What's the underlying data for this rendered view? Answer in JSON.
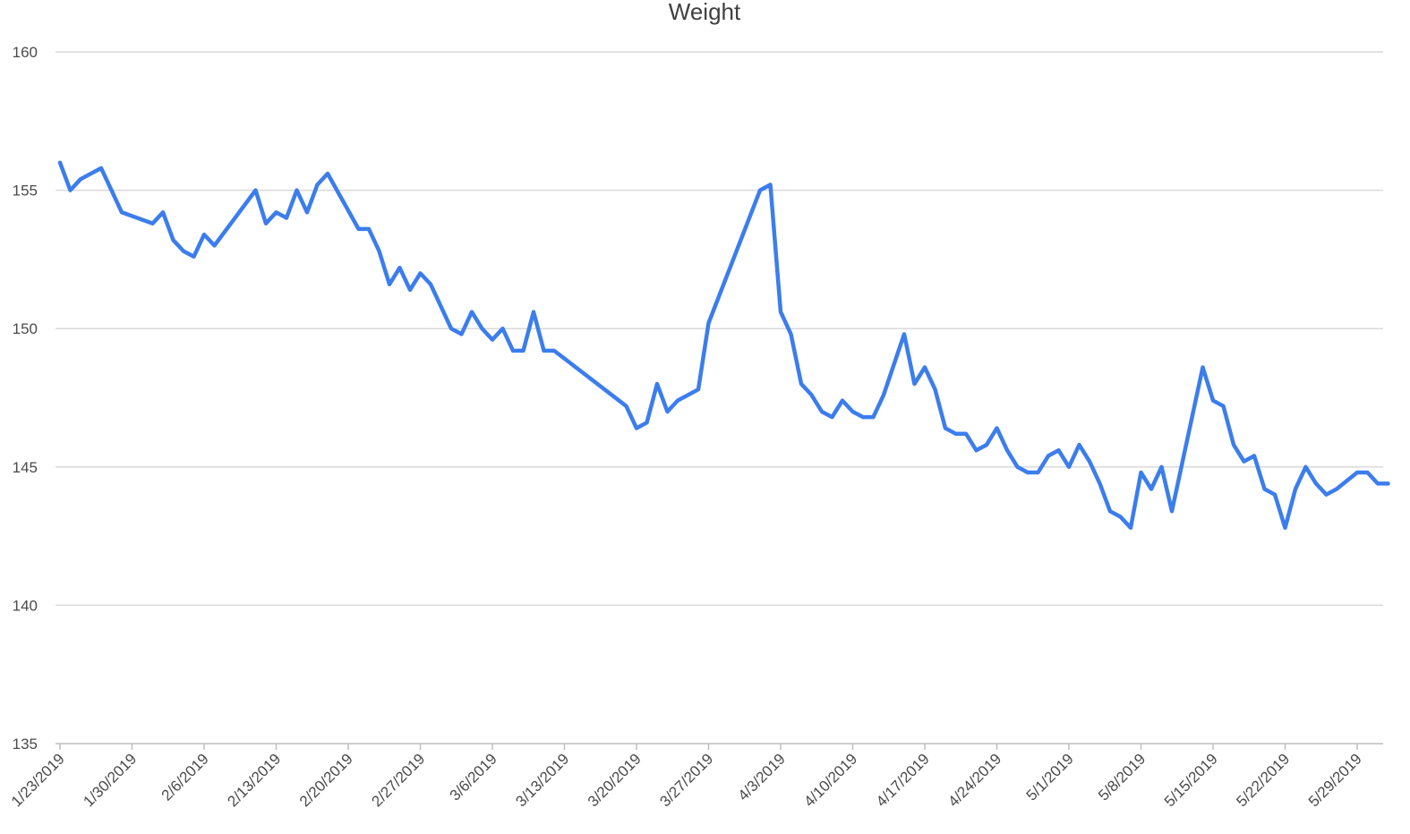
{
  "chart_data": {
    "type": "line",
    "title": "Weight",
    "xlabel": "",
    "ylabel": "",
    "ylim": [
      135,
      160
    ],
    "yticks": [
      135,
      140,
      145,
      150,
      155,
      160
    ],
    "grid": true,
    "legend": "none",
    "xlim": [
      "1/23/2019",
      "6/1/2019"
    ],
    "xticks": [
      "1/23/2019",
      "1/30/2019",
      "2/6/2019",
      "2/13/2019",
      "2/20/2019",
      "2/27/2019",
      "3/6/2019",
      "3/13/2019",
      "3/20/2019",
      "3/27/2019",
      "4/3/2019",
      "4/10/2019",
      "4/17/2019",
      "4/24/2019",
      "5/1/2019",
      "5/8/2019",
      "5/15/2019",
      "5/22/2019",
      "5/29/2019"
    ],
    "line_color": "#3c7ded",
    "series": [
      {
        "x": [
          "1/23/2019",
          "1/24/2019",
          "1/25/2019",
          "1/27/2019",
          "1/28/2019",
          "1/29/2019",
          "2/1/2019",
          "2/2/2019",
          "2/3/2019",
          "2/4/2019",
          "2/5/2019",
          "2/6/2019",
          "2/7/2019",
          "2/8/2019",
          "2/11/2019",
          "2/12/2019",
          "2/13/2019",
          "2/14/2019",
          "2/15/2019",
          "2/16/2019",
          "2/17/2019",
          "2/18/2019",
          "2/21/2019",
          "2/22/2019",
          "2/23/2019",
          "2/24/2019",
          "2/25/2019",
          "2/26/2019",
          "2/27/2019",
          "2/28/2019",
          "3/2/2019",
          "3/3/2019",
          "3/4/2019",
          "3/5/2019",
          "3/6/2019",
          "3/7/2019",
          "3/8/2019",
          "3/9/2019",
          "3/10/2019",
          "3/11/2019",
          "3/12/2019",
          "3/19/2019",
          "3/20/2019",
          "3/21/2019",
          "3/22/2019",
          "3/23/2019",
          "3/24/2019",
          "3/26/2019",
          "3/27/2019",
          "4/1/2019",
          "4/2/2019",
          "4/3/2019",
          "4/4/2019",
          "4/5/2019",
          "4/6/2019",
          "4/7/2019",
          "4/8/2019",
          "4/9/2019",
          "4/10/2019",
          "4/11/2019",
          "4/12/2019",
          "4/13/2019",
          "4/15/2019",
          "4/16/2019",
          "4/17/2019",
          "4/18/2019",
          "4/19/2019",
          "4/20/2019",
          "4/21/2019",
          "4/22/2019",
          "4/23/2019",
          "4/24/2019",
          "4/25/2019",
          "4/26/2019",
          "4/27/2019",
          "4/28/2019",
          "4/29/2019",
          "4/30/2019",
          "5/1/2019",
          "5/2/2019",
          "5/3/2019",
          "5/4/2019",
          "5/5/2019",
          "5/6/2019",
          "5/7/2019",
          "5/8/2019",
          "5/9/2019",
          "5/10/2019",
          "5/11/2019",
          "5/14/2019",
          "5/15/2019",
          "5/16/2019",
          "5/17/2019",
          "5/18/2019",
          "5/19/2019",
          "5/20/2019",
          "5/21/2019",
          "5/22/2019",
          "5/23/2019",
          "5/24/2019",
          "5/25/2019",
          "5/26/2019",
          "5/27/2019",
          "5/29/2019",
          "5/30/2019",
          "5/31/2019",
          "6/1/2019"
        ],
        "values": [
          156.0,
          155.0,
          155.4,
          155.8,
          155.0,
          154.2,
          153.8,
          154.2,
          153.2,
          152.8,
          152.6,
          153.4,
          153.0,
          153.5,
          155.0,
          153.8,
          154.2,
          154.0,
          155.0,
          154.2,
          155.2,
          155.6,
          153.6,
          153.6,
          152.8,
          151.6,
          152.2,
          151.4,
          152.0,
          151.6,
          150.0,
          149.8,
          150.6,
          150.0,
          149.6,
          150.0,
          149.2,
          149.2,
          150.6,
          149.2,
          149.2,
          147.2,
          146.4,
          146.6,
          148.0,
          147.0,
          147.4,
          147.8,
          150.2,
          155.0,
          155.2,
          150.6,
          149.8,
          148.0,
          147.6,
          147.0,
          146.8,
          147.4,
          147.0,
          146.8,
          146.8,
          147.6,
          149.8,
          148.0,
          148.6,
          147.8,
          146.4,
          146.2,
          146.2,
          145.6,
          145.8,
          146.4,
          145.6,
          145.0,
          144.8,
          144.8,
          145.4,
          145.6,
          145.0,
          145.8,
          145.2,
          144.4,
          143.4,
          143.2,
          142.8,
          144.8,
          144.2,
          145.0,
          143.4,
          148.6,
          147.4,
          147.2,
          145.8,
          145.2,
          145.4,
          144.2,
          144.0,
          142.8,
          144.2,
          145.0,
          144.4,
          144.0,
          144.2,
          144.8,
          144.8,
          144.4,
          144.4
        ]
      }
    ]
  }
}
